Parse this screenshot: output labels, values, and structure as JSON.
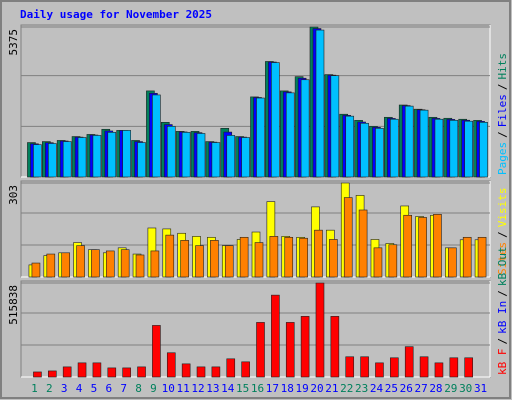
{
  "title": "Daily usage for November 2025",
  "legend_separator": "/",
  "chart_data": [
    {
      "type": "bar",
      "ylim": [
        0,
        5375
      ],
      "yticks": [
        5375
      ],
      "series": [
        {
          "name": "Pages",
          "color": "#00c0ff",
          "values": [
            1160,
            1200,
            1270,
            1415,
            1490,
            1600,
            1670,
            1235,
            2940,
            1815,
            1600,
            1560,
            1235,
            1490,
            1415,
            2830,
            4100,
            3015,
            3485,
            5265,
            3630,
            2180,
            1925,
            1745,
            2070,
            2540,
            2395,
            2070,
            2030,
            2000,
            1960
          ]
        },
        {
          "name": "Files",
          "color": "#0000ff",
          "values": [
            1190,
            1230,
            1290,
            1430,
            1505,
            1650,
            1670,
            1270,
            3000,
            1880,
            1615,
            1590,
            1250,
            1610,
            1430,
            2850,
            4120,
            3050,
            3540,
            5320,
            3650,
            2210,
            1970,
            1780,
            2100,
            2560,
            2410,
            2100,
            2065,
            2035,
            1995
          ]
        },
        {
          "name": "Hits",
          "color": "#00805c",
          "values": [
            1235,
            1270,
            1310,
            1450,
            1525,
            1710,
            1670,
            1310,
            3085,
            1960,
            1635,
            1635,
            1270,
            1745,
            1450,
            2870,
            4140,
            3085,
            3595,
            5375,
            3670,
            2250,
            2030,
            1815,
            2140,
            2580,
            2430,
            2140,
            2105,
            2070,
            2030
          ]
        }
      ]
    },
    {
      "type": "bar",
      "ylim": [
        0,
        303
      ],
      "yticks": [
        303
      ],
      "series": [
        {
          "name": "Sites",
          "color": "#ff8000",
          "values": [
            45,
            74,
            78,
            101,
            88,
            84,
            88,
            71,
            84,
            135,
            118,
            101,
            118,
            101,
            128,
            111,
            131,
            128,
            125,
            151,
            121,
            256,
            216,
            94,
            104,
            199,
            192,
            202,
            94,
            128,
            128
          ]
        },
        {
          "name": "Visits",
          "color": "#ffff00",
          "values": [
            39,
            69,
            78,
            111,
            88,
            78,
            94,
            74,
            158,
            155,
            141,
            131,
            128,
            101,
            121,
            145,
            243,
            131,
            128,
            226,
            151,
            303,
            263,
            121,
            108,
            229,
            195,
            199,
            94,
            120,
            120
          ]
        }
      ]
    },
    {
      "type": "bar",
      "ylim": [
        0,
        515838
      ],
      "yticks": [
        515838
      ],
      "categories": [
        "1",
        "2",
        "3",
        "4",
        "5",
        "6",
        "7",
        "8",
        "9",
        "10",
        "11",
        "12",
        "13",
        "14",
        "15",
        "16",
        "17",
        "18",
        "19",
        "20",
        "21",
        "22",
        "23",
        "24",
        "25",
        "26",
        "27",
        "28",
        "29",
        "30",
        "31"
      ],
      "category_colors": [
        "#00805c",
        "#00805c",
        "#0000ff",
        "#0000ff",
        "#0000ff",
        "#0000ff",
        "#0000ff",
        "#00805c",
        "#00805c",
        "#0000ff",
        "#0000ff",
        "#0000ff",
        "#0000ff",
        "#0000ff",
        "#00805c",
        "#00805c",
        "#0000ff",
        "#0000ff",
        "#0000ff",
        "#0000ff",
        "#0000ff",
        "#00805c",
        "#00805c",
        "#0000ff",
        "#0000ff",
        "#0000ff",
        "#0000ff",
        "#0000ff",
        "#00805c",
        "#00805c",
        "#0000ff"
      ],
      "series": [
        {
          "name": "kB F",
          "color": "#ff0000",
          "values": [
            27700,
            33300,
            55500,
            77600,
            77600,
            49900,
            49900,
            55500,
            283000,
            133000,
            72100,
            55500,
            55500,
            99800,
            83200,
            299500,
            449300,
            299500,
            332800,
            515838,
            332800,
            111000,
            111000,
            77600,
            105400,
            166400,
            111000,
            77600,
            105400,
            105400,
            0
          ]
        },
        {
          "name": "kB In",
          "color": "#0000ff",
          "values": [
            0,
            0,
            0,
            0,
            0,
            0,
            0,
            0,
            0,
            0,
            0,
            0,
            0,
            0,
            0,
            0,
            0,
            0,
            0,
            0,
            0,
            0,
            0,
            0,
            0,
            0,
            0,
            0,
            0,
            0,
            0
          ]
        },
        {
          "name": "kB Out",
          "color": "#00805c",
          "values": [
            0,
            0,
            0,
            0,
            0,
            0,
            0,
            0,
            0,
            0,
            0,
            0,
            0,
            0,
            0,
            0,
            0,
            0,
            0,
            0,
            0,
            0,
            0,
            0,
            0,
            0,
            0,
            0,
            0,
            0,
            0
          ]
        }
      ]
    }
  ]
}
